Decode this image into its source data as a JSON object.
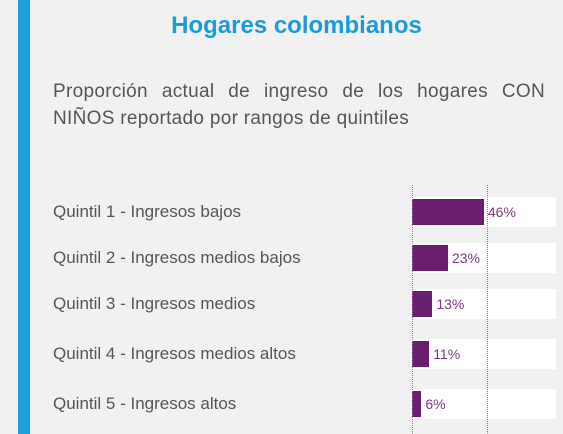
{
  "chart_data": {
    "type": "bar",
    "orientation": "horizontal",
    "title": "Hogares colombianos",
    "subtitle": "Proporción actual de ingreso de los hogares CON NIÑOS reportado por rangos de quintiles",
    "categories": [
      "Quintil 1 - Ingresos bajos",
      "Quintil 2 - Ingresos medios bajos",
      "Quintil 3 - Ingresos medios",
      "Quintil 4 - Ingresos medios altos",
      "Quintil 5 - Ingresos altos"
    ],
    "values": [
      46,
      23,
      13,
      11,
      6
    ],
    "value_labels": [
      "46%",
      "23%",
      "13%",
      "11%",
      "6%"
    ],
    "color": "#6a1f6e",
    "xlim": [
      0,
      48
    ]
  }
}
